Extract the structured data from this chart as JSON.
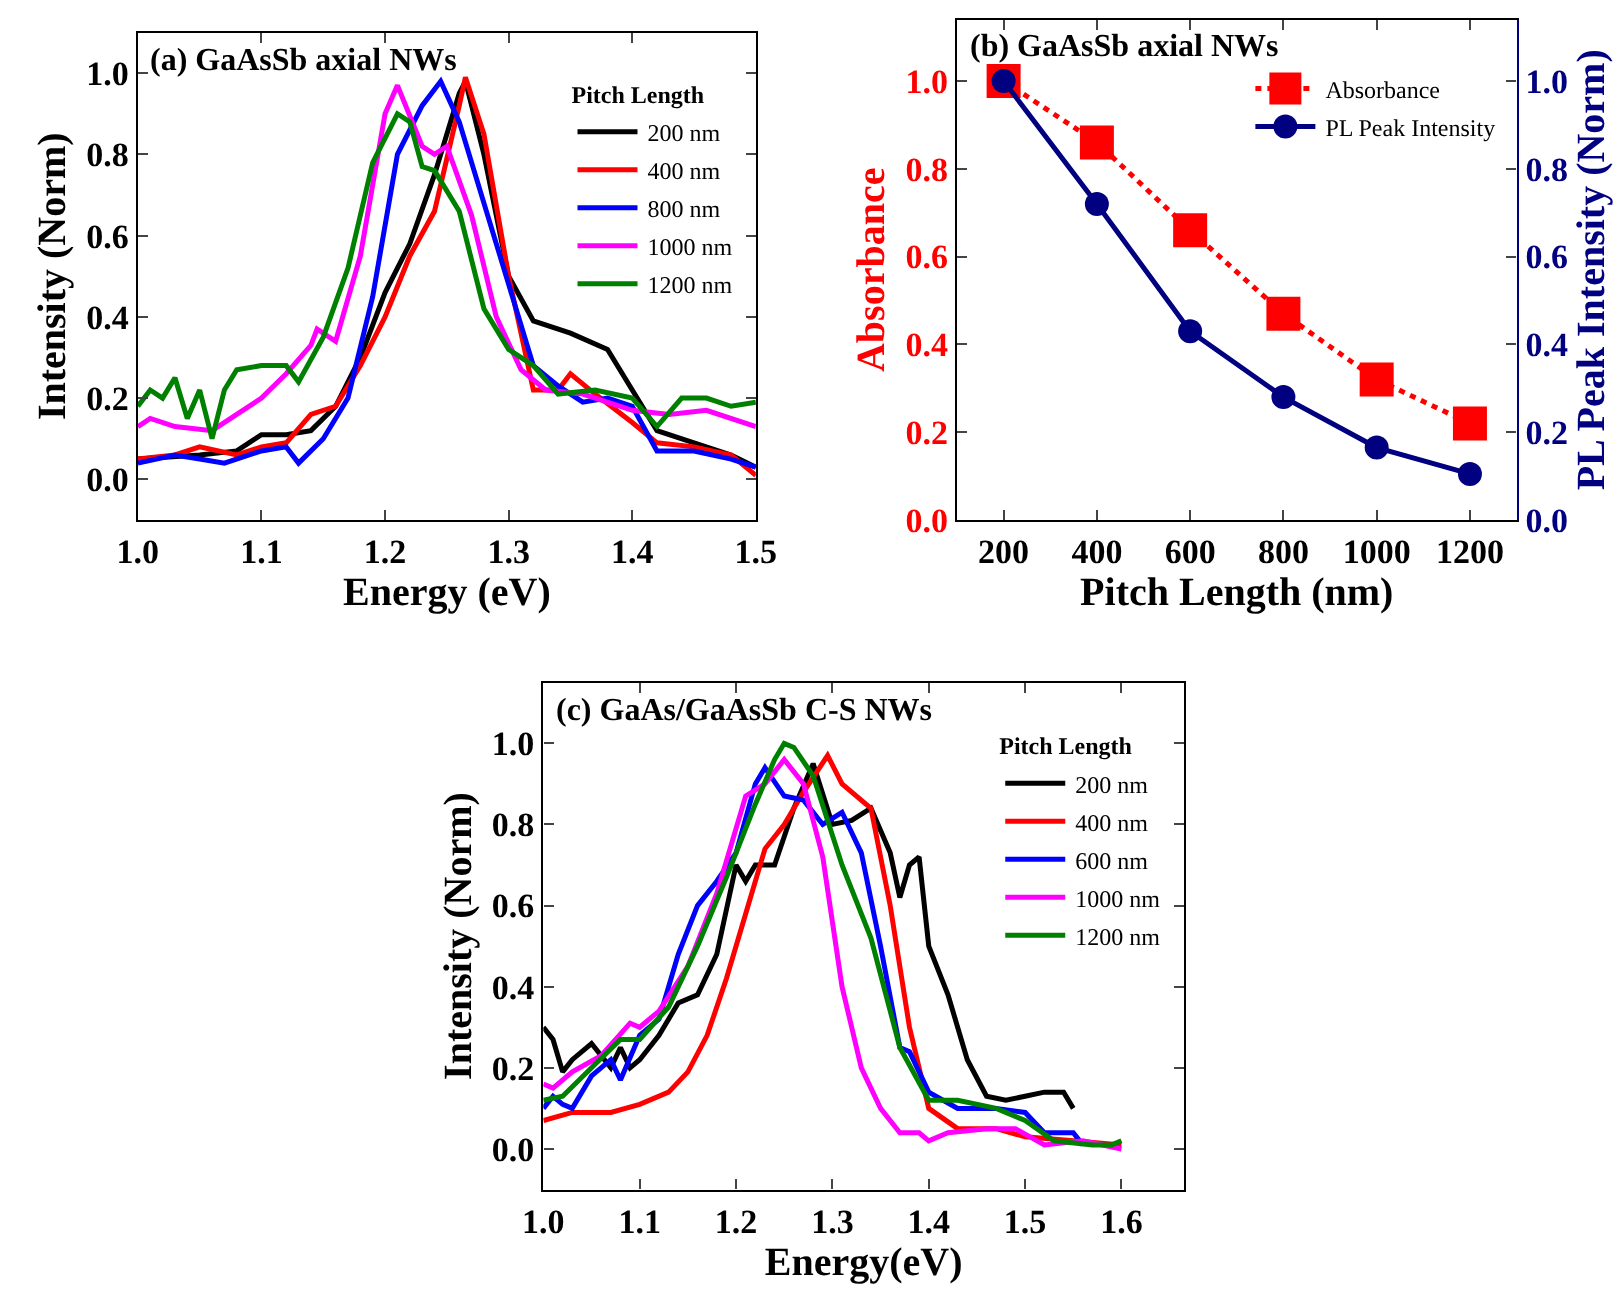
{
  "chart_data": [
    {
      "type": "line",
      "title": "(a) GaAsSb axial NWs",
      "xlabel": "Energy (eV)",
      "ylabel": "Intensity (Norm)",
      "legend": "top right",
      "legend_title": "Pitch Length",
      "line_style": "solid",
      "xlim": [
        1.0,
        1.5
      ],
      "xticks": [
        {
          "value": 1.0,
          "label": "1.0"
        },
        {
          "value": 1.1,
          "label": "1.1"
        },
        {
          "value": 1.2,
          "label": "1.2"
        },
        {
          "value": 1.3,
          "label": "1.3"
        },
        {
          "value": 1.4,
          "label": "1.4"
        },
        {
          "value": 1.5,
          "label": "1.5"
        }
      ],
      "ylim": [
        -0.1,
        1.1
      ],
      "yticks": [
        {
          "value": 0,
          "label": "0.0"
        },
        {
          "value": 0.2,
          "label": "0.2"
        },
        {
          "value": 0.4,
          "label": "0.4"
        },
        {
          "value": 0.6,
          "label": "0.6"
        },
        {
          "value": 0.8,
          "label": "0.8"
        },
        {
          "value": 1.0,
          "label": "1.0"
        }
      ],
      "series": [
        {
          "name": "200 nm",
          "color": "#000000",
          "x": [
            1.0,
            1.05,
            1.08,
            1.1,
            1.12,
            1.14,
            1.16,
            1.18,
            1.2,
            1.22,
            1.24,
            1.26,
            1.265,
            1.28,
            1.3,
            1.32,
            1.35,
            1.38,
            1.4,
            1.42,
            1.45,
            1.48,
            1.5
          ],
          "values": [
            0.05,
            0.06,
            0.07,
            0.11,
            0.11,
            0.12,
            0.18,
            0.3,
            0.46,
            0.58,
            0.75,
            0.95,
            0.98,
            0.8,
            0.5,
            0.39,
            0.36,
            0.32,
            0.22,
            0.12,
            0.09,
            0.06,
            0.03
          ]
        },
        {
          "name": "400 nm",
          "color": "#ff0000",
          "x": [
            1.0,
            1.03,
            1.05,
            1.08,
            1.1,
            1.12,
            1.14,
            1.16,
            1.18,
            1.2,
            1.22,
            1.24,
            1.26,
            1.265,
            1.28,
            1.3,
            1.32,
            1.34,
            1.35,
            1.37,
            1.4,
            1.42,
            1.45,
            1.48,
            1.5
          ],
          "values": [
            0.05,
            0.06,
            0.08,
            0.06,
            0.08,
            0.09,
            0.16,
            0.18,
            0.28,
            0.4,
            0.55,
            0.66,
            0.92,
            0.99,
            0.85,
            0.5,
            0.22,
            0.22,
            0.26,
            0.21,
            0.14,
            0.09,
            0.08,
            0.06,
            0.01
          ]
        },
        {
          "name": "800 nm",
          "color": "#0000ff",
          "x": [
            1.0,
            1.03,
            1.05,
            1.07,
            1.1,
            1.12,
            1.13,
            1.15,
            1.17,
            1.19,
            1.21,
            1.23,
            1.245,
            1.26,
            1.28,
            1.3,
            1.32,
            1.34,
            1.36,
            1.38,
            1.4,
            1.42,
            1.45,
            1.48,
            1.5
          ],
          "values": [
            0.04,
            0.06,
            0.05,
            0.04,
            0.07,
            0.08,
            0.04,
            0.1,
            0.2,
            0.45,
            0.8,
            0.92,
            0.98,
            0.88,
            0.68,
            0.48,
            0.28,
            0.23,
            0.19,
            0.2,
            0.18,
            0.07,
            0.07,
            0.05,
            0.03
          ]
        },
        {
          "name": "1000 nm",
          "color": "#ff00ff",
          "x": [
            1.0,
            1.01,
            1.03,
            1.06,
            1.08,
            1.1,
            1.12,
            1.14,
            1.145,
            1.16,
            1.18,
            1.2,
            1.21,
            1.23,
            1.24,
            1.25,
            1.27,
            1.29,
            1.31,
            1.33,
            1.36,
            1.4,
            1.43,
            1.46,
            1.5
          ],
          "values": [
            0.13,
            0.15,
            0.13,
            0.12,
            0.16,
            0.2,
            0.26,
            0.33,
            0.37,
            0.34,
            0.55,
            0.9,
            0.97,
            0.82,
            0.8,
            0.82,
            0.65,
            0.4,
            0.27,
            0.22,
            0.21,
            0.17,
            0.16,
            0.17,
            0.13
          ]
        },
        {
          "name": "1200 nm",
          "color": "#008000",
          "x": [
            1.0,
            1.01,
            1.02,
            1.03,
            1.04,
            1.05,
            1.06,
            1.07,
            1.08,
            1.1,
            1.12,
            1.13,
            1.15,
            1.17,
            1.19,
            1.21,
            1.22,
            1.23,
            1.24,
            1.26,
            1.28,
            1.3,
            1.32,
            1.34,
            1.37,
            1.4,
            1.42,
            1.44,
            1.46,
            1.48,
            1.5
          ],
          "values": [
            0.18,
            0.22,
            0.2,
            0.25,
            0.15,
            0.22,
            0.1,
            0.22,
            0.27,
            0.28,
            0.28,
            0.24,
            0.35,
            0.52,
            0.78,
            0.9,
            0.88,
            0.77,
            0.76,
            0.66,
            0.42,
            0.32,
            0.28,
            0.21,
            0.22,
            0.2,
            0.13,
            0.2,
            0.2,
            0.18,
            0.19
          ]
        }
      ]
    },
    {
      "type": "line",
      "title": "(b) GaAsSb axial NWs",
      "xlabel": "Pitch Length (nm)",
      "ylabel": "Absorbance",
      "y2label": "PL Peak Intensity (Norm)",
      "legend": "top right",
      "xlim": [
        100,
        1300
      ],
      "xticks": [
        200,
        400,
        600,
        800,
        1000,
        1200
      ],
      "ylim": [
        0,
        1.14
      ],
      "yticks": [
        {
          "value": 0,
          "label": "0.0"
        },
        {
          "value": 0.2,
          "label": "0.2"
        },
        {
          "value": 0.4,
          "label": "0.4"
        },
        {
          "value": 0.6,
          "label": "0.6"
        },
        {
          "value": 0.8,
          "label": "0.8"
        },
        {
          "value": 1.0,
          "label": "1.0"
        }
      ],
      "y2lim": [
        0,
        1.14
      ],
      "y2ticks": [
        {
          "value": 0,
          "label": "0.0"
        },
        {
          "value": 0.2,
          "label": "0.2"
        },
        {
          "value": 0.4,
          "label": "0.4"
        },
        {
          "value": 0.6,
          "label": "0.6"
        },
        {
          "value": 0.8,
          "label": "0.8"
        },
        {
          "value": 1.0,
          "label": "1.0"
        }
      ],
      "series": [
        {
          "name": "Absorbance",
          "color": "#ff0000",
          "marker": "square",
          "line_style": "dotted",
          "x": [
            200,
            400,
            600,
            800,
            1000,
            1200
          ],
          "values": [
            1.0,
            0.86,
            0.66,
            0.47,
            0.32,
            0.22
          ]
        },
        {
          "name": "PL Peak Intensity",
          "color": "#000080",
          "marker": "circle",
          "line_style": "solid",
          "axis": "y2",
          "x": [
            200,
            400,
            600,
            800,
            1000,
            1200
          ],
          "values": [
            1.0,
            0.72,
            0.43,
            0.28,
            0.165,
            0.105
          ]
        }
      ]
    },
    {
      "type": "line",
      "title": "(c) GaAs/GaAsSb C-S NWs",
      "xlabel": "Energy(eV)",
      "ylabel": "Intensity (Norm)",
      "legend": "top right",
      "legend_title": "Pitch Length",
      "line_style": "solid",
      "xlim": [
        1.0,
        1.665
      ],
      "xticks": [
        {
          "value": 1.0,
          "label": "1.0"
        },
        {
          "value": 1.1,
          "label": "1.1"
        },
        {
          "value": 1.2,
          "label": "1.2"
        },
        {
          "value": 1.3,
          "label": "1.3"
        },
        {
          "value": 1.4,
          "label": "1.4"
        },
        {
          "value": 1.5,
          "label": "1.5"
        },
        {
          "value": 1.6,
          "label": "1.6"
        }
      ],
      "ylim": [
        -0.1,
        1.15
      ],
      "yticks": [
        {
          "value": 0,
          "label": "0.0"
        },
        {
          "value": 0.2,
          "label": "0.2"
        },
        {
          "value": 0.4,
          "label": "0.4"
        },
        {
          "value": 0.6,
          "label": "0.6"
        },
        {
          "value": 0.8,
          "label": "0.8"
        },
        {
          "value": 1.0,
          "label": "1.0"
        }
      ],
      "series": [
        {
          "name": "200 nm",
          "color": "#000000",
          "x": [
            1.0,
            1.01,
            1.02,
            1.03,
            1.05,
            1.07,
            1.08,
            1.09,
            1.1,
            1.12,
            1.14,
            1.16,
            1.18,
            1.2,
            1.21,
            1.22,
            1.24,
            1.26,
            1.28,
            1.3,
            1.32,
            1.34,
            1.36,
            1.37,
            1.38,
            1.39,
            1.4,
            1.42,
            1.44,
            1.46,
            1.48,
            1.5,
            1.52,
            1.54,
            1.55
          ],
          "values": [
            0.3,
            0.27,
            0.19,
            0.22,
            0.26,
            0.2,
            0.25,
            0.2,
            0.22,
            0.28,
            0.36,
            0.38,
            0.48,
            0.7,
            0.66,
            0.7,
            0.7,
            0.84,
            0.95,
            0.8,
            0.81,
            0.84,
            0.73,
            0.62,
            0.7,
            0.72,
            0.5,
            0.38,
            0.22,
            0.13,
            0.12,
            0.13,
            0.14,
            0.14,
            0.1
          ]
        },
        {
          "name": "400 nm",
          "color": "#ff0000",
          "x": [
            1.0,
            1.03,
            1.07,
            1.1,
            1.13,
            1.15,
            1.17,
            1.19,
            1.21,
            1.23,
            1.25,
            1.27,
            1.295,
            1.31,
            1.34,
            1.36,
            1.38,
            1.4,
            1.43,
            1.47,
            1.5,
            1.55,
            1.6
          ],
          "values": [
            0.07,
            0.09,
            0.09,
            0.11,
            0.14,
            0.19,
            0.28,
            0.42,
            0.58,
            0.74,
            0.8,
            0.88,
            0.97,
            0.9,
            0.84,
            0.6,
            0.3,
            0.1,
            0.05,
            0.05,
            0.03,
            0.02,
            0.01
          ]
        },
        {
          "name": "600 nm",
          "color": "#0000ff",
          "x": [
            1.0,
            1.01,
            1.02,
            1.03,
            1.05,
            1.07,
            1.08,
            1.1,
            1.12,
            1.14,
            1.16,
            1.18,
            1.2,
            1.22,
            1.23,
            1.25,
            1.27,
            1.29,
            1.31,
            1.33,
            1.35,
            1.37,
            1.38,
            1.4,
            1.43,
            1.47,
            1.5,
            1.52,
            1.55,
            1.56
          ],
          "values": [
            0.1,
            0.13,
            0.11,
            0.1,
            0.18,
            0.22,
            0.17,
            0.28,
            0.32,
            0.48,
            0.6,
            0.66,
            0.73,
            0.9,
            0.94,
            0.87,
            0.86,
            0.8,
            0.83,
            0.73,
            0.5,
            0.25,
            0.24,
            0.14,
            0.1,
            0.1,
            0.09,
            0.04,
            0.04,
            0.01
          ]
        },
        {
          "name": "1000 nm",
          "color": "#ff00ff",
          "x": [
            1.0,
            1.01,
            1.03,
            1.06,
            1.09,
            1.1,
            1.12,
            1.15,
            1.18,
            1.21,
            1.23,
            1.25,
            1.27,
            1.29,
            1.31,
            1.33,
            1.35,
            1.37,
            1.39,
            1.4,
            1.42,
            1.46,
            1.49,
            1.52,
            1.56,
            1.6
          ],
          "values": [
            0.16,
            0.15,
            0.19,
            0.23,
            0.31,
            0.3,
            0.34,
            0.45,
            0.63,
            0.87,
            0.9,
            0.96,
            0.9,
            0.72,
            0.4,
            0.2,
            0.1,
            0.04,
            0.04,
            0.02,
            0.04,
            0.05,
            0.05,
            0.01,
            0.02,
            0.0
          ]
        },
        {
          "name": "1200 nm",
          "color": "#008000",
          "x": [
            1.0,
            1.02,
            1.05,
            1.08,
            1.1,
            1.13,
            1.16,
            1.19,
            1.22,
            1.24,
            1.25,
            1.26,
            1.28,
            1.31,
            1.34,
            1.37,
            1.4,
            1.43,
            1.47,
            1.5,
            1.53,
            1.57,
            1.59,
            1.6
          ],
          "values": [
            0.12,
            0.13,
            0.2,
            0.27,
            0.27,
            0.35,
            0.5,
            0.67,
            0.85,
            0.96,
            1.0,
            0.99,
            0.92,
            0.7,
            0.52,
            0.25,
            0.12,
            0.12,
            0.1,
            0.07,
            0.02,
            0.01,
            0.01,
            0.02
          ]
        }
      ]
    }
  ]
}
